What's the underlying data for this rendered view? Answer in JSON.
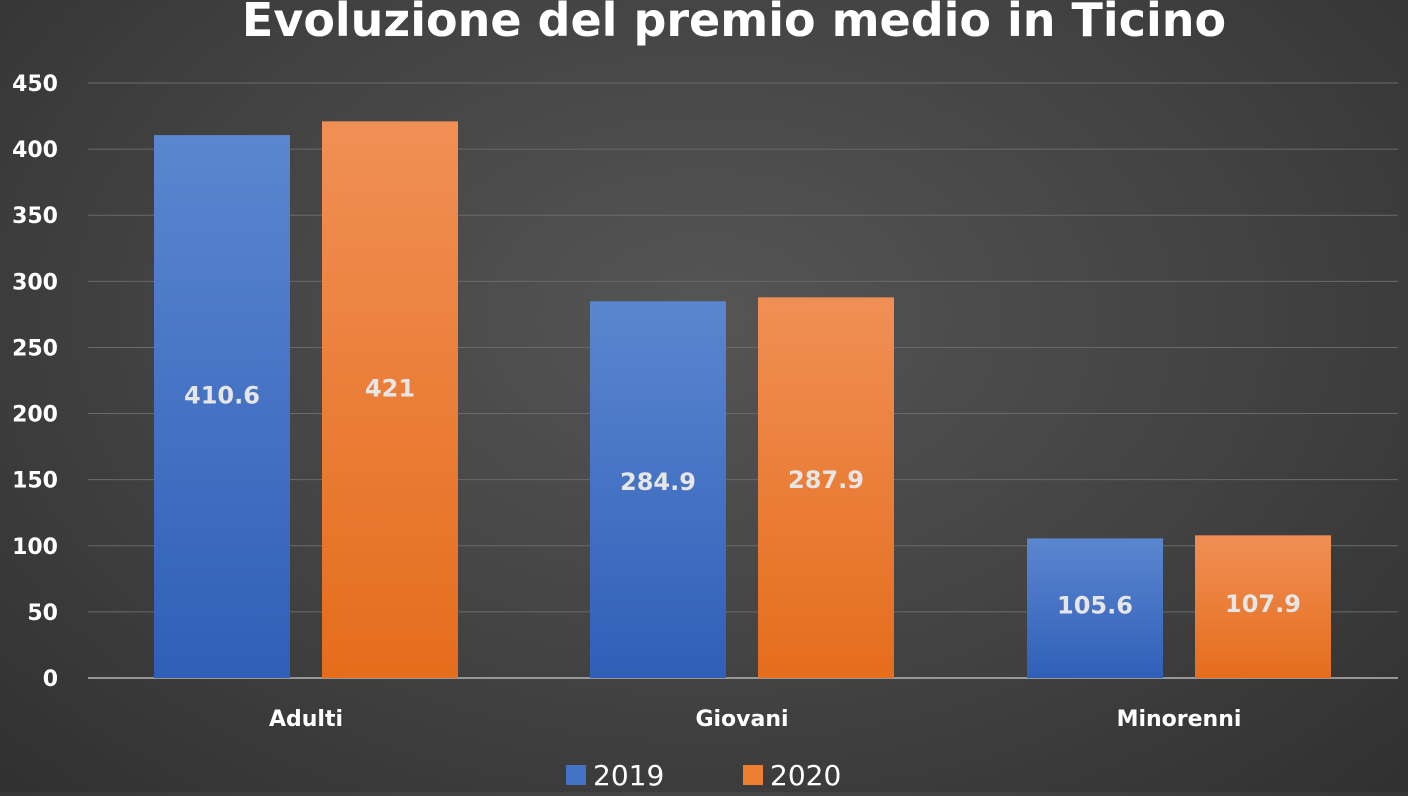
{
  "chart_data": {
    "type": "bar",
    "title": "Evoluzione del premio medio in Ticino",
    "categories": [
      "Adulti",
      "Giovani",
      "Minorenni"
    ],
    "series": [
      {
        "name": "2019",
        "color": "#4472c4",
        "values": [
          410.6,
          284.9,
          105.6
        ],
        "labels": [
          "410.6",
          "284.9",
          "105.6"
        ]
      },
      {
        "name": "2020",
        "color": "#ed7d31",
        "values": [
          421,
          287.9,
          107.9
        ],
        "labels": [
          "421",
          "287.9",
          "107.9"
        ]
      }
    ],
    "ylim": [
      0,
      450
    ],
    "yticks": [
      0,
      50,
      100,
      150,
      200,
      250,
      300,
      350,
      400,
      450
    ],
    "grid": true,
    "legend_position": "bottom",
    "background": "#424242"
  }
}
